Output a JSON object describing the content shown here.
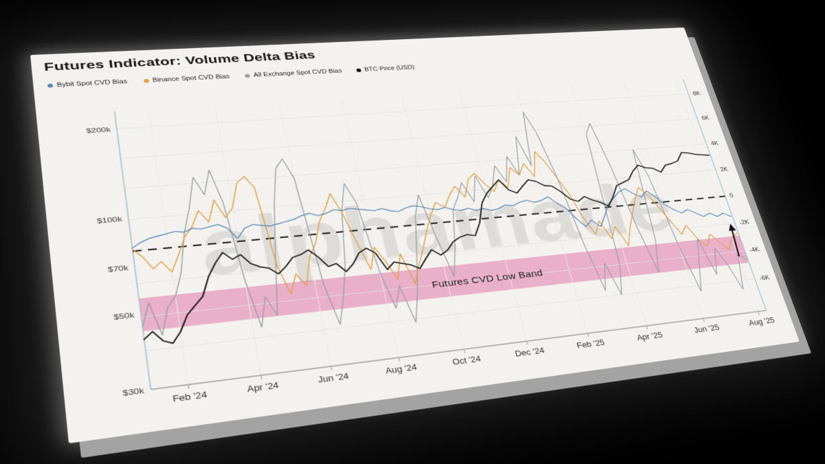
{
  "page": {
    "background_color": "#000000",
    "card_color": "#f3f2ef"
  },
  "chart_data": {
    "type": "line",
    "title": "Futures Indicator: Volume Delta Bias",
    "watermark": "alphamade",
    "legend_position": "top-left",
    "grid": true,
    "x_axis": {
      "unit": "months since Jan 2024",
      "start": 0,
      "step": 0.25,
      "end": 19.3,
      "ticks": [
        {
          "pos": 1,
          "label": "Feb '24"
        },
        {
          "pos": 3,
          "label": "Apr '24"
        },
        {
          "pos": 5,
          "label": "Jun '24"
        },
        {
          "pos": 7,
          "label": "Aug '24"
        },
        {
          "pos": 9,
          "label": "Oct '24"
        },
        {
          "pos": 11,
          "label": "Dec '24"
        },
        {
          "pos": 13,
          "label": "Feb '25"
        },
        {
          "pos": 15,
          "label": "Apr '25"
        },
        {
          "pos": 17,
          "label": "Jun '25"
        },
        {
          "pos": 19,
          "label": "Aug '25"
        }
      ]
    },
    "left_axis": {
      "scale": "log",
      "unit": "USD",
      "min": 30000,
      "max": 230000,
      "ticks": [
        {
          "value": 200000,
          "label": "$200k"
        },
        {
          "value": 100000,
          "label": "$100k"
        },
        {
          "value": 70000,
          "label": "$70k"
        },
        {
          "value": 50000,
          "label": "$50k"
        },
        {
          "value": 30000,
          "label": "$30k"
        }
      ]
    },
    "right_axis": {
      "scale": "linear",
      "unit": "CVD (thousands)",
      "min": -8.2,
      "max": 9.2,
      "ticks": [
        {
          "value": 8,
          "label": "8K"
        },
        {
          "value": 6,
          "label": "6K"
        },
        {
          "value": 4,
          "label": "4K"
        },
        {
          "value": 2,
          "label": "2K"
        },
        {
          "value": 0,
          "label": "0"
        },
        {
          "value": -2,
          "label": "-2K"
        },
        {
          "value": -4,
          "label": "-4K"
        },
        {
          "value": -6,
          "label": "-6K"
        }
      ]
    },
    "zero_line": {
      "axis": "right",
      "value": 0,
      "style": "dashed",
      "color": "#1a1a1a"
    },
    "band": {
      "label": "Futures CVD Low Band",
      "axis": "right",
      "from": -2.9,
      "to": -4.85,
      "color": "#e7a3c2",
      "label_x": 10.3,
      "label_y": -4.0
    },
    "annotation_arrow": {
      "axis": "right",
      "x": 19.02,
      "from": -4.35,
      "to": -2.0,
      "color": "#111111"
    },
    "series": [
      {
        "name": "All Exchange Spot CVD Bias",
        "color": "#98a0a6",
        "axis": "right",
        "width": 1.3,
        "values": [
          -4.6,
          -3.2,
          -5.2,
          -3.6,
          -3.0,
          -1.6,
          0.8,
          2.4,
          4.4,
          3.2,
          4.8,
          2.6,
          -2.4,
          -5.4,
          -3.6,
          -4.8,
          -1.2,
          2.2,
          4.6,
          5.2,
          3.8,
          -3.2,
          -5.8,
          -4.2,
          -2.2,
          1.4,
          3.2,
          1.8,
          -2.8,
          -5.2,
          -3.8,
          -6.2,
          -4.4,
          -2.0,
          0.6,
          2.0,
          -1.0,
          -3.6,
          -1.8,
          0.8,
          1.6,
          2.6,
          1.2,
          3.0,
          1.4,
          2.2,
          3.6,
          2.4,
          4.2,
          2.8,
          5.6,
          3.4,
          7.4,
          5.8,
          2.6,
          -2.4,
          -5.6,
          -3.8,
          -6.0,
          -4.0,
          5.4,
          6.2,
          3.0,
          -1.6,
          -4.8,
          -2.6,
          4.0,
          2.0,
          -3.2,
          -6.4,
          -4.6,
          -2.8,
          -5.4,
          -3.6,
          -4.8,
          -6.6,
          -4.2,
          -4.6
        ]
      },
      {
        "name": "Binance Spot CVD Bias",
        "color": "#e2a144",
        "axis": "right",
        "width": 1.4,
        "values": [
          0.1,
          -0.4,
          -1.2,
          -0.8,
          -1.5,
          -0.5,
          0.6,
          1.2,
          2.2,
          1.4,
          2.8,
          1.6,
          2.2,
          3.8,
          4.2,
          3.4,
          -1.8,
          -3.6,
          -2.4,
          -3.2,
          -1.4,
          -0.6,
          0.8,
          1.6,
          2.6,
          1.2,
          -0.8,
          -2.6,
          -1.2,
          -2.2,
          -3.4,
          -1.8,
          -3.8,
          -2.6,
          -1.6,
          -0.4,
          0.6,
          1.4,
          1.0,
          1.8,
          2.4,
          1.6,
          2.8,
          3.2,
          2.4,
          1.8,
          2.6,
          2.0,
          3.4,
          2.8,
          3.6,
          2.6,
          4.4,
          3.6,
          2.4,
          1.2,
          -0.6,
          -1.8,
          -0.9,
          -2.2,
          -1.4,
          -2.8,
          -1.6,
          -0.6,
          0.4,
          1.2,
          0.6,
          -0.4,
          -1.4,
          -2.4,
          -1.8,
          -2.8,
          -3.4,
          -2.6,
          -3.2,
          -3.8,
          -3.0,
          -2.7
        ]
      },
      {
        "name": "Bybit Spot CVD Bias",
        "color": "#5585b5",
        "axis": "right",
        "width": 1.4,
        "values": [
          0.2,
          0.5,
          0.7,
          0.8,
          0.9,
          1.0,
          0.9,
          1.1,
          1.0,
          1.1,
          1.2,
          0.9,
          0.2,
          0.8,
          1.0,
          0.9,
          0.8,
          0.9,
          1.0,
          1.1,
          1.3,
          1.4,
          1.2,
          1.3,
          1.5,
          1.4,
          1.5,
          1.4,
          1.3,
          1.2,
          1.3,
          1.1,
          1.0,
          1.2,
          1.3,
          1.2,
          1.0,
          0.9,
          1.0,
          0.8,
          0.7,
          0.8,
          0.6,
          0.7,
          0.5,
          0.6,
          0.8,
          0.7,
          0.9,
          1.0,
          0.8,
          0.9,
          1.1,
          0.6,
          0.2,
          -0.6,
          -1.2,
          -0.8,
          -1.3,
          -0.6,
          0.2,
          0.6,
          1.0,
          1.2,
          0.8,
          0.5,
          0.9,
          0.4,
          -0.2,
          -0.6,
          -0.9,
          -0.7,
          -1.0,
          -1.3,
          -1.1,
          -1.4,
          -1.2,
          -1.5
        ]
      },
      {
        "name": "BTC Price (USD)",
        "color": "#161616",
        "axis": "left",
        "unit": "USD thousands",
        "width": 1.8,
        "values": [
          42,
          44,
          41,
          40,
          43,
          48,
          51,
          54,
          62,
          68,
          73,
          69,
          71,
          66,
          64,
          63,
          60,
          63,
          67,
          68,
          70,
          66,
          61,
          62,
          58,
          61,
          66,
          68,
          65,
          57,
          60,
          59,
          58,
          56,
          60,
          64,
          61,
          63,
          67,
          69,
          70,
          69,
          76,
          89,
          96,
          101,
          106,
          97,
          94,
          99,
          104,
          102,
          98,
          97,
          92,
          86,
          84,
          87,
          84,
          82,
          79,
          85,
          93,
          95,
          97,
          104,
          109,
          106,
          105,
          101,
          107,
          108,
          110,
          118,
          117,
          115,
          114,
          113
        ]
      }
    ],
    "colors": {
      "axis_line": "#a8c2d4",
      "bottom_axis": "#9a9a9a",
      "grid_h": "#e3e1de",
      "grid_v": "#ebe9e6"
    }
  }
}
